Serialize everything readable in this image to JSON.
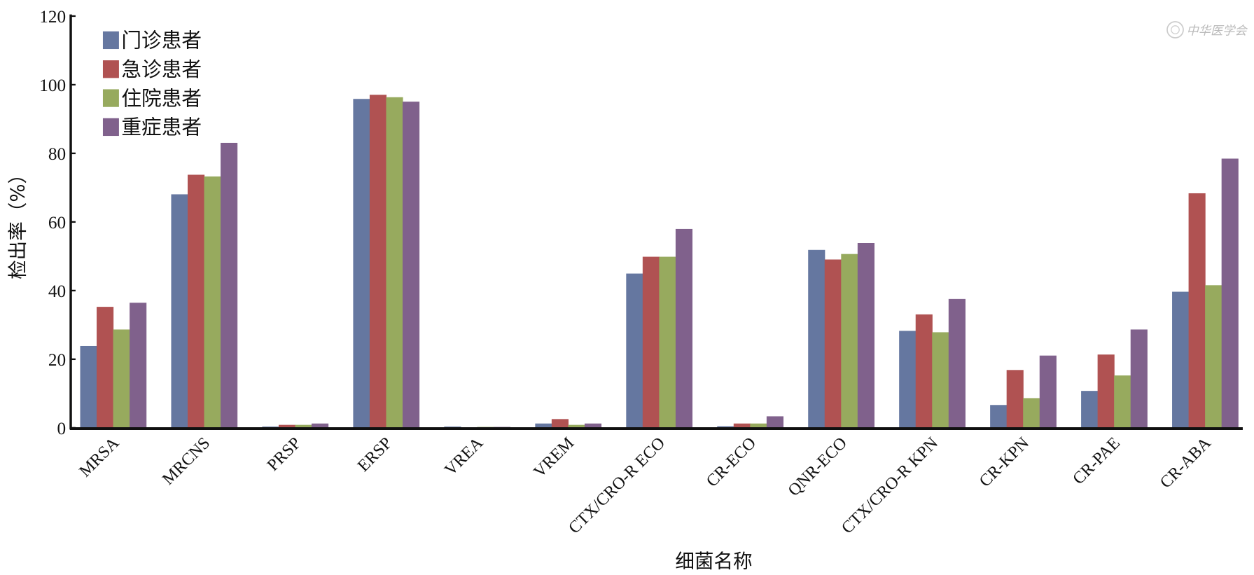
{
  "chart_data": {
    "type": "bar",
    "title": "",
    "xlabel": "细菌名称",
    "ylabel": "检出率（%）",
    "ylim": [
      0,
      120
    ],
    "yticks": [
      0,
      20,
      40,
      60,
      80,
      100,
      120
    ],
    "grid": false,
    "legend_position": "top-left",
    "categories": [
      "MRSA",
      "MRCNS",
      "PRSP",
      "ERSP",
      "VREA",
      "VREM",
      "CTX/CRO-R ECO",
      "CR-ECO",
      "QNR-ECO",
      "CTX/CRO-R KPN",
      "CR-KPN",
      "CR-PAE",
      "CR-ABA"
    ],
    "series": [
      {
        "name": "门诊患者",
        "color": "#6577a0",
        "values": [
          23.8,
          68.0,
          0.3,
          95.8,
          0.3,
          1.2,
          44.9,
          0.4,
          51.8,
          28.2,
          6.6,
          10.7,
          39.6
        ]
      },
      {
        "name": "急诊患者",
        "color": "#b05252",
        "values": [
          35.2,
          73.7,
          0.8,
          97.0,
          0.0,
          2.5,
          49.8,
          1.2,
          49.0,
          33.0,
          16.8,
          21.3,
          68.3
        ]
      },
      {
        "name": "住院患者",
        "color": "#97aa5e",
        "values": [
          28.6,
          73.2,
          0.8,
          96.3,
          0.2,
          0.8,
          49.8,
          1.2,
          50.6,
          27.8,
          8.6,
          15.2,
          41.5
        ]
      },
      {
        "name": "重症患者",
        "color": "#80618c",
        "values": [
          36.4,
          83.0,
          1.2,
          95.0,
          0.2,
          1.2,
          57.9,
          3.3,
          53.8,
          37.5,
          21.0,
          28.6,
          78.4
        ]
      }
    ]
  },
  "watermark": {
    "text": "中华医学会"
  }
}
